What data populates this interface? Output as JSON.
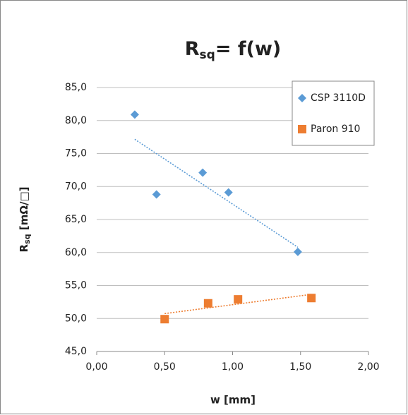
{
  "chart_data": {
    "type": "scatter",
    "title": {
      "main": "R",
      "sub": "sq",
      "rest": "= f(w)"
    },
    "x_label": "w [mm]",
    "y_label": {
      "main": "R",
      "sub": "sq",
      "rest": " [mΩ/□]"
    },
    "xlim": [
      0,
      2
    ],
    "ylim": [
      45,
      85
    ],
    "xticks": [
      {
        "value": 0,
        "label": "0,00"
      },
      {
        "value": 0.5,
        "label": "0,50"
      },
      {
        "value": 1,
        "label": "1,00"
      },
      {
        "value": 1.5,
        "label": "1,50"
      },
      {
        "value": 2,
        "label": "2,00"
      }
    ],
    "yticks": [
      {
        "value": 45,
        "label": "45,0"
      },
      {
        "value": 50,
        "label": "50,0"
      },
      {
        "value": 55,
        "label": "55,0"
      },
      {
        "value": 60,
        "label": "60,0"
      },
      {
        "value": 65,
        "label": "65,0"
      },
      {
        "value": 70,
        "label": "70,0"
      },
      {
        "value": 75,
        "label": "75,0"
      },
      {
        "value": 80,
        "label": "80,0"
      },
      {
        "value": 85,
        "label": "85,0"
      }
    ],
    "grid": true,
    "legend": "top-right",
    "series": [
      {
        "name": "CSP 3110D",
        "color": "#5b9bd5",
        "marker": "diamond",
        "trendline": "linear",
        "x": [
          0.28,
          0.44,
          0.78,
          0.97,
          1.48
        ],
        "values": [
          80.9,
          68.8,
          72.1,
          69.1,
          60.1
        ]
      },
      {
        "name": "Paron 910",
        "color": "#ed7d31",
        "marker": "square",
        "trendline": "linear",
        "x": [
          0.5,
          0.82,
          1.04,
          1.58
        ],
        "values": [
          49.9,
          52.3,
          52.9,
          53.1
        ]
      }
    ]
  }
}
